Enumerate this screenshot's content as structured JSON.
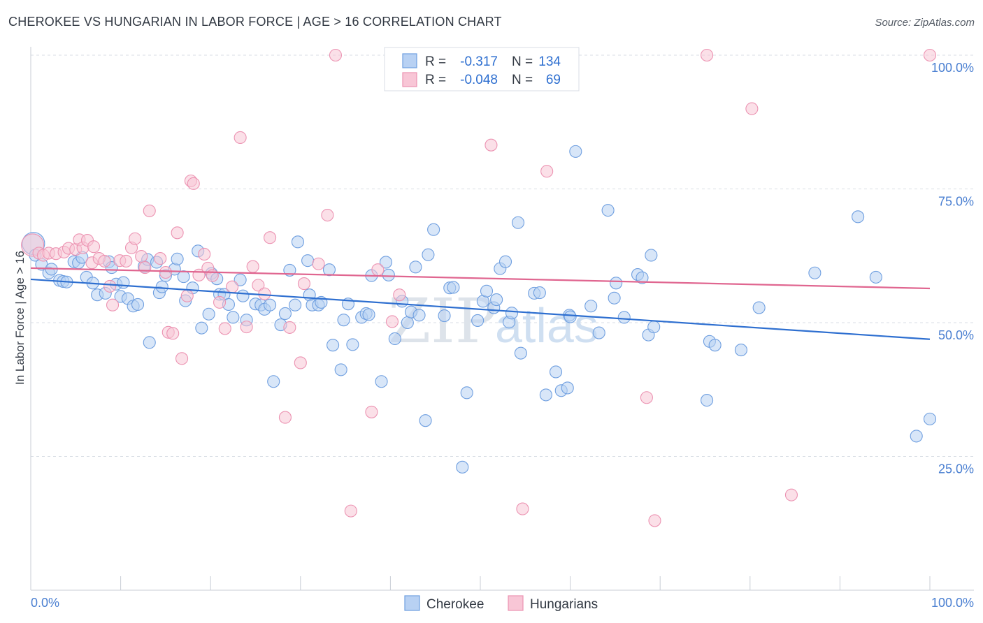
{
  "header": {
    "title": "CHEROKEE VS HUNGARIAN IN LABOR FORCE | AGE > 16 CORRELATION CHART",
    "source": "Source: ZipAtlas.com"
  },
  "watermark": {
    "part1": "ZIP",
    "part2": "atlas"
  },
  "legend_top": {
    "rows": [
      {
        "r_label": "R =",
        "r_value": "-0.317",
        "n_label": "N =",
        "n_value": "134"
      },
      {
        "r_label": "R =",
        "r_value": "-0.048",
        "n_label": "N =",
        "n_value": "69"
      }
    ]
  },
  "colors": {
    "cherokee_fill": "#b8d1f3",
    "cherokee_stroke": "#6f9fe0",
    "cherokee_line": "#2e6fd0",
    "hungarian_fill": "#f8c6d6",
    "hungarian_stroke": "#ec93b2",
    "hungarian_line": "#e06690",
    "value_text": "#2e6fd0",
    "grid": "#d8dde4"
  },
  "chart_data": {
    "type": "scatter",
    "title": "CHEROKEE VS HUNGARIAN IN LABOR FORCE | AGE > 16 CORRELATION CHART",
    "xlabel": "",
    "ylabel": "In Labor Force | Age > 16",
    "xlim": [
      0,
      100
    ],
    "ylim": [
      0,
      100
    ],
    "x_tick_labels": [
      "0.0%",
      "100.0%"
    ],
    "y_tick_labels": [
      {
        "value": 25,
        "label": "25.0%"
      },
      {
        "value": 50,
        "label": "50.0%"
      },
      {
        "value": 75,
        "label": "75.0%"
      },
      {
        "value": 100,
        "label": "100.0%"
      }
    ],
    "grid": true,
    "legend_position": "bottom",
    "series": [
      {
        "name": "Cherokee",
        "r": -0.317,
        "n": 134,
        "trend": {
          "x": [
            0,
            100
          ],
          "y": [
            58.1,
            46.9
          ]
        },
        "points": [
          [
            0.3,
            64.8
          ],
          [
            0.5,
            62.6
          ],
          [
            1.2,
            60.9
          ],
          [
            2,
            59.3
          ],
          [
            2.3,
            60
          ],
          [
            3.2,
            57.9
          ],
          [
            3.6,
            57.7
          ],
          [
            4,
            57.6
          ],
          [
            4.8,
            61.4
          ],
          [
            5.3,
            61.2
          ],
          [
            5.7,
            62.2
          ],
          [
            6.2,
            58.5
          ],
          [
            6.9,
            57.4
          ],
          [
            7.4,
            55.2
          ],
          [
            8.3,
            55.5
          ],
          [
            8.7,
            61.4
          ],
          [
            9,
            60.3
          ],
          [
            9.5,
            57.2
          ],
          [
            10,
            54.9
          ],
          [
            10.3,
            57.5
          ],
          [
            10.8,
            54.5
          ],
          [
            11.4,
            53.1
          ],
          [
            11.9,
            53.4
          ],
          [
            12.6,
            60.5
          ],
          [
            13,
            61.8
          ],
          [
            13.2,
            46.3
          ],
          [
            14,
            61.3
          ],
          [
            14.3,
            55.6
          ],
          [
            14.6,
            56.7
          ],
          [
            15,
            58.8
          ],
          [
            16,
            60
          ],
          [
            16.3,
            61.9
          ],
          [
            17,
            58.6
          ],
          [
            17.2,
            54.1
          ],
          [
            18,
            56.5
          ],
          [
            18.6,
            63.4
          ],
          [
            19,
            49
          ],
          [
            19.8,
            51.6
          ],
          [
            20.1,
            59.2
          ],
          [
            20.7,
            58.2
          ],
          [
            21,
            55.3
          ],
          [
            21.5,
            55.3
          ],
          [
            22,
            53.4
          ],
          [
            22.5,
            51
          ],
          [
            23.3,
            58
          ],
          [
            23.6,
            55
          ],
          [
            24,
            50.5
          ],
          [
            25,
            53.5
          ],
          [
            25.6,
            53.3
          ],
          [
            26,
            52.5
          ],
          [
            26.6,
            53.3
          ],
          [
            27,
            39
          ],
          [
            27.8,
            49.6
          ],
          [
            28.3,
            51.7
          ],
          [
            28.8,
            59.8
          ],
          [
            29.4,
            53.3
          ],
          [
            29.7,
            65.1
          ],
          [
            30.8,
            61.6
          ],
          [
            31,
            55.2
          ],
          [
            31.3,
            53.3
          ],
          [
            32,
            53.3
          ],
          [
            32.3,
            53.8
          ],
          [
            33.2,
            59.9
          ],
          [
            33.6,
            45.8
          ],
          [
            34.5,
            41.2
          ],
          [
            34.8,
            50.5
          ],
          [
            35.8,
            45.9
          ],
          [
            35.3,
            53.5
          ],
          [
            36.8,
            51
          ],
          [
            37.3,
            51.7
          ],
          [
            37.6,
            51.5
          ],
          [
            37.9,
            58.8
          ],
          [
            39,
            39
          ],
          [
            39.5,
            61.3
          ],
          [
            39.8,
            58.9
          ],
          [
            40.5,
            47
          ],
          [
            41.3,
            54
          ],
          [
            41.9,
            50
          ],
          [
            42.3,
            52
          ],
          [
            42.8,
            60.4
          ],
          [
            43.2,
            51.4
          ],
          [
            43.9,
            31.7
          ],
          [
            44.2,
            62.7
          ],
          [
            44.8,
            67.4
          ],
          [
            46,
            51.3
          ],
          [
            46.6,
            56.5
          ],
          [
            47,
            56.6
          ],
          [
            48,
            23
          ],
          [
            48.5,
            36.9
          ],
          [
            49.7,
            50.4
          ],
          [
            50.3,
            54
          ],
          [
            50.7,
            55.9
          ],
          [
            51.5,
            52.8
          ],
          [
            51.8,
            54.3
          ],
          [
            52.2,
            60.1
          ],
          [
            52.8,
            61.4
          ],
          [
            53.2,
            50.1
          ],
          [
            53.5,
            51.8
          ],
          [
            54.2,
            68.7
          ],
          [
            54.5,
            44.3
          ],
          [
            56,
            55.5
          ],
          [
            56.6,
            55.6
          ],
          [
            57.3,
            36.5
          ],
          [
            58.4,
            40.8
          ],
          [
            59,
            37.3
          ],
          [
            59.7,
            37.8
          ],
          [
            59.9,
            51.4
          ],
          [
            60,
            51.1
          ],
          [
            60.6,
            82
          ],
          [
            62.3,
            53.1
          ],
          [
            63.2,
            48.1
          ],
          [
            64.2,
            71
          ],
          [
            64.9,
            54.6
          ],
          [
            65.1,
            57.4
          ],
          [
            66,
            51
          ],
          [
            67.5,
            59
          ],
          [
            68,
            58.4
          ],
          [
            68.7,
            47.7
          ],
          [
            69,
            62.6
          ],
          [
            69.3,
            49.2
          ],
          [
            75.2,
            35.5
          ],
          [
            75.5,
            46.5
          ],
          [
            76.1,
            45.8
          ],
          [
            79,
            44.9
          ],
          [
            81,
            52.8
          ],
          [
            87.2,
            59.3
          ],
          [
            92,
            69.8
          ],
          [
            94,
            58.5
          ],
          [
            98.5,
            28.8
          ],
          [
            100,
            32
          ]
        ]
      },
      {
        "name": "Hungarians",
        "r": -0.048,
        "n": 69,
        "trend": {
          "x": [
            0,
            100
          ],
          "y": [
            60.2,
            56.4
          ]
        },
        "points": [
          [
            0.2,
            64.5
          ],
          [
            0.9,
            63
          ],
          [
            1.4,
            62.6
          ],
          [
            2,
            63
          ],
          [
            2.8,
            62.9
          ],
          [
            3.7,
            63.2
          ],
          [
            4.2,
            63.9
          ],
          [
            5,
            63.7
          ],
          [
            5.4,
            65.5
          ],
          [
            5.8,
            64
          ],
          [
            6.3,
            65.4
          ],
          [
            6.8,
            61.2
          ],
          [
            7,
            64.2
          ],
          [
            7.6,
            62
          ],
          [
            8.2,
            61.5
          ],
          [
            8.8,
            56.8
          ],
          [
            9.1,
            53.3
          ],
          [
            9.9,
            61.6
          ],
          [
            10.6,
            61.5
          ],
          [
            11.2,
            64
          ],
          [
            11.6,
            65.7
          ],
          [
            12.3,
            62.4
          ],
          [
            12.7,
            60.3
          ],
          [
            13.2,
            70.9
          ],
          [
            14.4,
            62
          ],
          [
            15,
            59.4
          ],
          [
            15.3,
            48.2
          ],
          [
            15.8,
            48
          ],
          [
            16.3,
            66.8
          ],
          [
            16.8,
            43.3
          ],
          [
            17.4,
            55
          ],
          [
            17.8,
            76.5
          ],
          [
            18.1,
            76
          ],
          [
            18.7,
            58.9
          ],
          [
            19.3,
            62.8
          ],
          [
            19.7,
            60.2
          ],
          [
            20.2,
            58.8
          ],
          [
            21,
            53.8
          ],
          [
            21.6,
            48.9
          ],
          [
            22.4,
            56.7
          ],
          [
            23.3,
            84.6
          ],
          [
            24,
            49.2
          ],
          [
            24.7,
            60.5
          ],
          [
            25.3,
            57
          ],
          [
            26,
            55.4
          ],
          [
            26.6,
            65.9
          ],
          [
            28.3,
            32.3
          ],
          [
            28.8,
            49.1
          ],
          [
            30,
            42.5
          ],
          [
            30.4,
            57.3
          ],
          [
            32,
            61
          ],
          [
            33,
            70.1
          ],
          [
            33.9,
            100
          ],
          [
            35.6,
            14.8
          ],
          [
            37.9,
            33.3
          ],
          [
            38.6,
            59.9
          ],
          [
            40.2,
            50.2
          ],
          [
            41,
            55.2
          ],
          [
            51.2,
            83.2
          ],
          [
            54.7,
            15.2
          ],
          [
            57.4,
            78.3
          ],
          [
            68.5,
            36
          ],
          [
            69.4,
            13
          ],
          [
            75.2,
            100
          ],
          [
            80.2,
            90
          ],
          [
            84.6,
            17.8
          ],
          [
            100,
            100
          ]
        ]
      }
    ]
  },
  "legend_bottom": {
    "items": [
      {
        "label": "Cherokee"
      },
      {
        "label": "Hungarians"
      }
    ]
  }
}
